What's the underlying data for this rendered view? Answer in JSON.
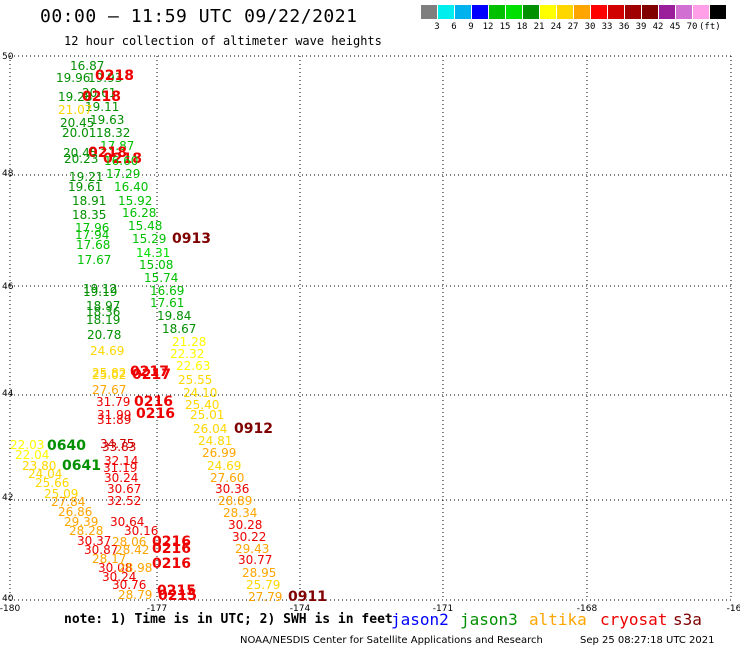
{
  "header": {
    "title": "00:00 – 11:59 UTC 09/22/2021",
    "subtitle": "12 hour collection of altimeter wave heights"
  },
  "legend": {
    "colors": [
      "#7f7f7f",
      "#00eeee",
      "#00b2ee",
      "#0000ff",
      "#00c000",
      "#00e000",
      "#009000",
      "#ffff00",
      "#ffd700",
      "#ffa500",
      "#ff0000",
      "#d00000",
      "#a00000",
      "#800000",
      "#9b1e9b",
      "#d26fd2",
      "#ff9fe8",
      "#000000"
    ],
    "labels": [
      "3",
      "6",
      "9",
      "12",
      "15",
      "18",
      "21",
      "24",
      "27",
      "30",
      "33",
      "36",
      "39",
      "42",
      "45",
      "70"
    ],
    "unit": "(ft)"
  },
  "axes": {
    "lat_labels": [
      "50",
      "48",
      "46",
      "44",
      "42",
      "40"
    ],
    "lon_labels": [
      "-180",
      "-177",
      "-174",
      "-171",
      "-168",
      "-16"
    ]
  },
  "readings": [
    {
      "t": "16.87",
      "c": "#009000",
      "f": "12px",
      "bold": false
    },
    {
      "t": "19.96",
      "c": "#009000",
      "f": "12px",
      "bold": false
    },
    {
      "t": "19.93",
      "c": "#009000",
      "f": "12px",
      "bold": false
    },
    {
      "t": "0218",
      "c": "#ee0000",
      "f": "14px",
      "bold": true
    },
    {
      "t": "20.61",
      "c": "#009000",
      "f": "12px",
      "bold": false
    },
    {
      "t": "19.28",
      "c": "#009000",
      "f": "12px",
      "bold": false
    },
    {
      "t": "0218",
      "c": "#ee0000",
      "f": "14px",
      "bold": true
    },
    {
      "t": "19.11",
      "c": "#009000",
      "f": "12px",
      "bold": false
    },
    {
      "t": "21.07",
      "c": "#ffd700",
      "f": "12px",
      "bold": false
    },
    {
      "t": "20.45",
      "c": "#009000",
      "f": "12px",
      "bold": false
    },
    {
      "t": "19.63",
      "c": "#009000",
      "f": "12px",
      "bold": false
    },
    {
      "t": "20.01",
      "c": "#009000",
      "f": "12px",
      "bold": false
    },
    {
      "t": "18.32",
      "c": "#009000",
      "f": "12px",
      "bold": false
    },
    {
      "t": "17.87",
      "c": "#00c000",
      "f": "12px",
      "bold": false
    },
    {
      "t": "20.45",
      "c": "#009000",
      "f": "12px",
      "bold": false
    },
    {
      "t": "0218",
      "c": "#ee0000",
      "f": "14px",
      "bold": true
    },
    {
      "t": "20.23",
      "c": "#009000",
      "f": "12px",
      "bold": false
    },
    {
      "t": "0218",
      "c": "#ee0000",
      "f": "14px",
      "bold": true
    },
    {
      "t": "16.60",
      "c": "#00c000",
      "f": "12px",
      "bold": false
    },
    {
      "t": "17.29",
      "c": "#00c000",
      "f": "12px",
      "bold": false
    },
    {
      "t": "19.21",
      "c": "#009000",
      "f": "12px",
      "bold": false
    },
    {
      "t": "19.61",
      "c": "#009000",
      "f": "12px",
      "bold": false
    },
    {
      "t": "16.40",
      "c": "#00c000",
      "f": "12px",
      "bold": false
    },
    {
      "t": "18.91",
      "c": "#009000",
      "f": "12px",
      "bold": false
    },
    {
      "t": "15.92",
      "c": "#00c000",
      "f": "12px",
      "bold": false
    },
    {
      "t": "18.35",
      "c": "#009000",
      "f": "12px",
      "bold": false
    },
    {
      "t": "16.28",
      "c": "#00c000",
      "f": "12px",
      "bold": false
    },
    {
      "t": "17.96",
      "c": "#00c000",
      "f": "12px",
      "bold": false
    },
    {
      "t": "15.48",
      "c": "#00c000",
      "f": "12px",
      "bold": false
    },
    {
      "t": "17.94",
      "c": "#00c000",
      "f": "12px",
      "bold": false
    },
    {
      "t": "15.29",
      "c": "#00c000",
      "f": "12px",
      "bold": false
    },
    {
      "t": "0913",
      "c": "#800000",
      "f": "14px",
      "bold": true
    },
    {
      "t": "17.68",
      "c": "#00c000",
      "f": "12px",
      "bold": false
    },
    {
      "t": "14.31",
      "c": "#00e000",
      "f": "12px",
      "bold": false
    },
    {
      "t": "17.67",
      "c": "#00c000",
      "f": "12px",
      "bold": false
    },
    {
      "t": "15.08",
      "c": "#00c000",
      "f": "12px",
      "bold": false
    },
    {
      "t": "15.74",
      "c": "#00c000",
      "f": "12px",
      "bold": false
    },
    {
      "t": "19.12",
      "c": "#009000",
      "f": "12px",
      "bold": false
    },
    {
      "t": "19.19",
      "c": "#009000",
      "f": "12px",
      "bold": false
    },
    {
      "t": "16.69",
      "c": "#00c000",
      "f": "12px",
      "bold": false
    },
    {
      "t": "17.61",
      "c": "#00c000",
      "f": "12px",
      "bold": false
    },
    {
      "t": "18.97",
      "c": "#009000",
      "f": "12px",
      "bold": false
    },
    {
      "t": "18.36",
      "c": "#009000",
      "f": "12px",
      "bold": false
    },
    {
      "t": "19.84",
      "c": "#009000",
      "f": "12px",
      "bold": false
    },
    {
      "t": "18.19",
      "c": "#009000",
      "f": "12px",
      "bold": false
    },
    {
      "t": "18.67",
      "c": "#009000",
      "f": "12px",
      "bold": false
    },
    {
      "t": "20.78",
      "c": "#009000",
      "f": "12px",
      "bold": false
    },
    {
      "t": "21.28",
      "c": "#ffff00",
      "f": "12px",
      "bold": false
    },
    {
      "t": "24.69",
      "c": "#ffd700",
      "f": "12px",
      "bold": false
    },
    {
      "t": "22.32",
      "c": "#ffff00",
      "f": "12px",
      "bold": false
    },
    {
      "t": "22.63",
      "c": "#ffff00",
      "f": "12px",
      "bold": false
    },
    {
      "t": "25.82",
      "c": "#ffd700",
      "f": "12px",
      "bold": false
    },
    {
      "t": "0217",
      "c": "#ee0000",
      "f": "14px",
      "bold": true
    },
    {
      "t": "25.02",
      "c": "#ffd700",
      "f": "12px",
      "bold": false
    },
    {
      "t": "0217",
      "c": "#ee0000",
      "f": "14px",
      "bold": true
    },
    {
      "t": "25.55",
      "c": "#ffd700",
      "f": "12px",
      "bold": false
    },
    {
      "t": "27.67",
      "c": "#ffa500",
      "f": "12px",
      "bold": false
    },
    {
      "t": "24.10",
      "c": "#ffd700",
      "f": "12px",
      "bold": false
    },
    {
      "t": "31.79",
      "c": "#ee0000",
      "f": "12px",
      "bold": false
    },
    {
      "t": "0216",
      "c": "#ee0000",
      "f": "14px",
      "bold": true
    },
    {
      "t": "25.40",
      "c": "#ffd700",
      "f": "12px",
      "bold": false
    },
    {
      "t": "31.99",
      "c": "#ee0000",
      "f": "12px",
      "bold": false
    },
    {
      "t": "0216",
      "c": "#ee0000",
      "f": "14px",
      "bold": true
    },
    {
      "t": "25.01",
      "c": "#ffd700",
      "f": "12px",
      "bold": false
    },
    {
      "t": "31.89",
      "c": "#ee0000",
      "f": "12px",
      "bold": false
    },
    {
      "t": "26.04",
      "c": "#ffd700",
      "f": "12px",
      "bold": false
    },
    {
      "t": "0912",
      "c": "#800000",
      "f": "14px",
      "bold": true
    },
    {
      "t": "24.81",
      "c": "#ffd700",
      "f": "12px",
      "bold": false
    },
    {
      "t": "22.03",
      "c": "#ffff00",
      "f": "12px",
      "bold": false
    },
    {
      "t": "0640",
      "c": "#009000",
      "f": "14px",
      "bold": true
    },
    {
      "t": "34.75",
      "c": "#d00000",
      "f": "12px",
      "bold": false
    },
    {
      "t": "33.83",
      "c": "#d00000",
      "f": "12px",
      "bold": false
    },
    {
      "t": "22.04",
      "c": "#ffff00",
      "f": "12px",
      "bold": false
    },
    {
      "t": "26.99",
      "c": "#ffa500",
      "f": "12px",
      "bold": false
    },
    {
      "t": "32.14",
      "c": "#ee0000",
      "f": "12px",
      "bold": false
    },
    {
      "t": "23.80",
      "c": "#ffd700",
      "f": "12px",
      "bold": false
    },
    {
      "t": "0641",
      "c": "#009000",
      "f": "14px",
      "bold": true
    },
    {
      "t": "31.19",
      "c": "#ee0000",
      "f": "12px",
      "bold": false
    },
    {
      "t": "24.69",
      "c": "#ffd700",
      "f": "12px",
      "bold": false
    },
    {
      "t": "24.04",
      "c": "#ffd700",
      "f": "12px",
      "bold": false
    },
    {
      "t": "30.24",
      "c": "#ee0000",
      "f": "12px",
      "bold": false
    },
    {
      "t": "27.60",
      "c": "#ffa500",
      "f": "12px",
      "bold": false
    },
    {
      "t": "25.66",
      "c": "#ffd700",
      "f": "12px",
      "bold": false
    },
    {
      "t": "30.67",
      "c": "#ee0000",
      "f": "12px",
      "bold": false
    },
    {
      "t": "30.36",
      "c": "#ee0000",
      "f": "12px",
      "bold": false
    },
    {
      "t": "25.09",
      "c": "#ffd700",
      "f": "12px",
      "bold": false
    },
    {
      "t": "32.52",
      "c": "#ee0000",
      "f": "12px",
      "bold": false
    },
    {
      "t": "27.84",
      "c": "#ffa500",
      "f": "12px",
      "bold": false
    },
    {
      "t": "28.89",
      "c": "#ffa500",
      "f": "12px",
      "bold": false
    },
    {
      "t": "26.86",
      "c": "#ffa500",
      "f": "12px",
      "bold": false
    },
    {
      "t": "28.34",
      "c": "#ffa500",
      "f": "12px",
      "bold": false
    },
    {
      "t": "29.39",
      "c": "#ffa500",
      "f": "12px",
      "bold": false
    },
    {
      "t": "30.64",
      "c": "#ee0000",
      "f": "12px",
      "bold": false
    },
    {
      "t": "30.28",
      "c": "#ee0000",
      "f": "12px",
      "bold": false
    },
    {
      "t": "28.28",
      "c": "#ffa500",
      "f": "12px",
      "bold": false
    },
    {
      "t": "30.16",
      "c": "#ee0000",
      "f": "12px",
      "bold": false
    },
    {
      "t": "30.37",
      "c": "#ee0000",
      "f": "12px",
      "bold": false
    },
    {
      "t": "28.06",
      "c": "#ffa500",
      "f": "12px",
      "bold": false
    },
    {
      "t": "0216",
      "c": "#ee0000",
      "f": "14px",
      "bold": true
    },
    {
      "t": "30.22",
      "c": "#ee0000",
      "f": "12px",
      "bold": false
    },
    {
      "t": "30.87",
      "c": "#ee0000",
      "f": "12px",
      "bold": false
    },
    {
      "t": "28.42",
      "c": "#ffa500",
      "f": "12px",
      "bold": false
    },
    {
      "t": "0216",
      "c": "#ee0000",
      "f": "14px",
      "bold": true
    },
    {
      "t": "29.43",
      "c": "#ffa500",
      "f": "12px",
      "bold": false
    },
    {
      "t": "28.17",
      "c": "#ffa500",
      "f": "12px",
      "bold": false
    },
    {
      "t": "30.77",
      "c": "#ee0000",
      "f": "12px",
      "bold": false
    },
    {
      "t": "30.08",
      "c": "#ee0000",
      "f": "12px",
      "bold": false
    },
    {
      "t": "28.98",
      "c": "#ffa500",
      "f": "12px",
      "bold": false
    },
    {
      "t": "0216",
      "c": "#ee0000",
      "f": "14px",
      "bold": true
    },
    {
      "t": "28.95",
      "c": "#ffa500",
      "f": "12px",
      "bold": false
    },
    {
      "t": "30.24",
      "c": "#ee0000",
      "f": "12px",
      "bold": false
    },
    {
      "t": "30.76",
      "c": "#ee0000",
      "f": "12px",
      "bold": false
    },
    {
      "t": "25.79",
      "c": "#ffd700",
      "f": "12px",
      "bold": false
    },
    {
      "t": "0215",
      "c": "#ee0000",
      "f": "14px",
      "bold": true
    },
    {
      "t": "28.79",
      "c": "#ffa500",
      "f": "12px",
      "bold": false
    },
    {
      "t": "0215",
      "c": "#ee0000",
      "f": "14px",
      "bold": true
    },
    {
      "t": "27.79",
      "c": "#ffa500",
      "f": "12px",
      "bold": false
    },
    {
      "t": "0911",
      "c": "#800000",
      "f": "14px",
      "bold": true
    }
  ],
  "footer": {
    "note": "note: 1) Time is in UTC; 2) SWH is in feet",
    "satellites": [
      {
        "name": "jason2",
        "color": "#0000ff"
      },
      {
        "name": "jason3",
        "color": "#009000"
      },
      {
        "name": "altika",
        "color": "#ffa500"
      },
      {
        "name": "cryosat",
        "color": "#ee0000"
      },
      {
        "name": "s3a",
        "color": "#800000"
      }
    ],
    "credit": "NOAA/NESDIS Center for Satellite Applications and Research",
    "timestamp": "Sep 25 08:27:18 UTC 2021"
  }
}
